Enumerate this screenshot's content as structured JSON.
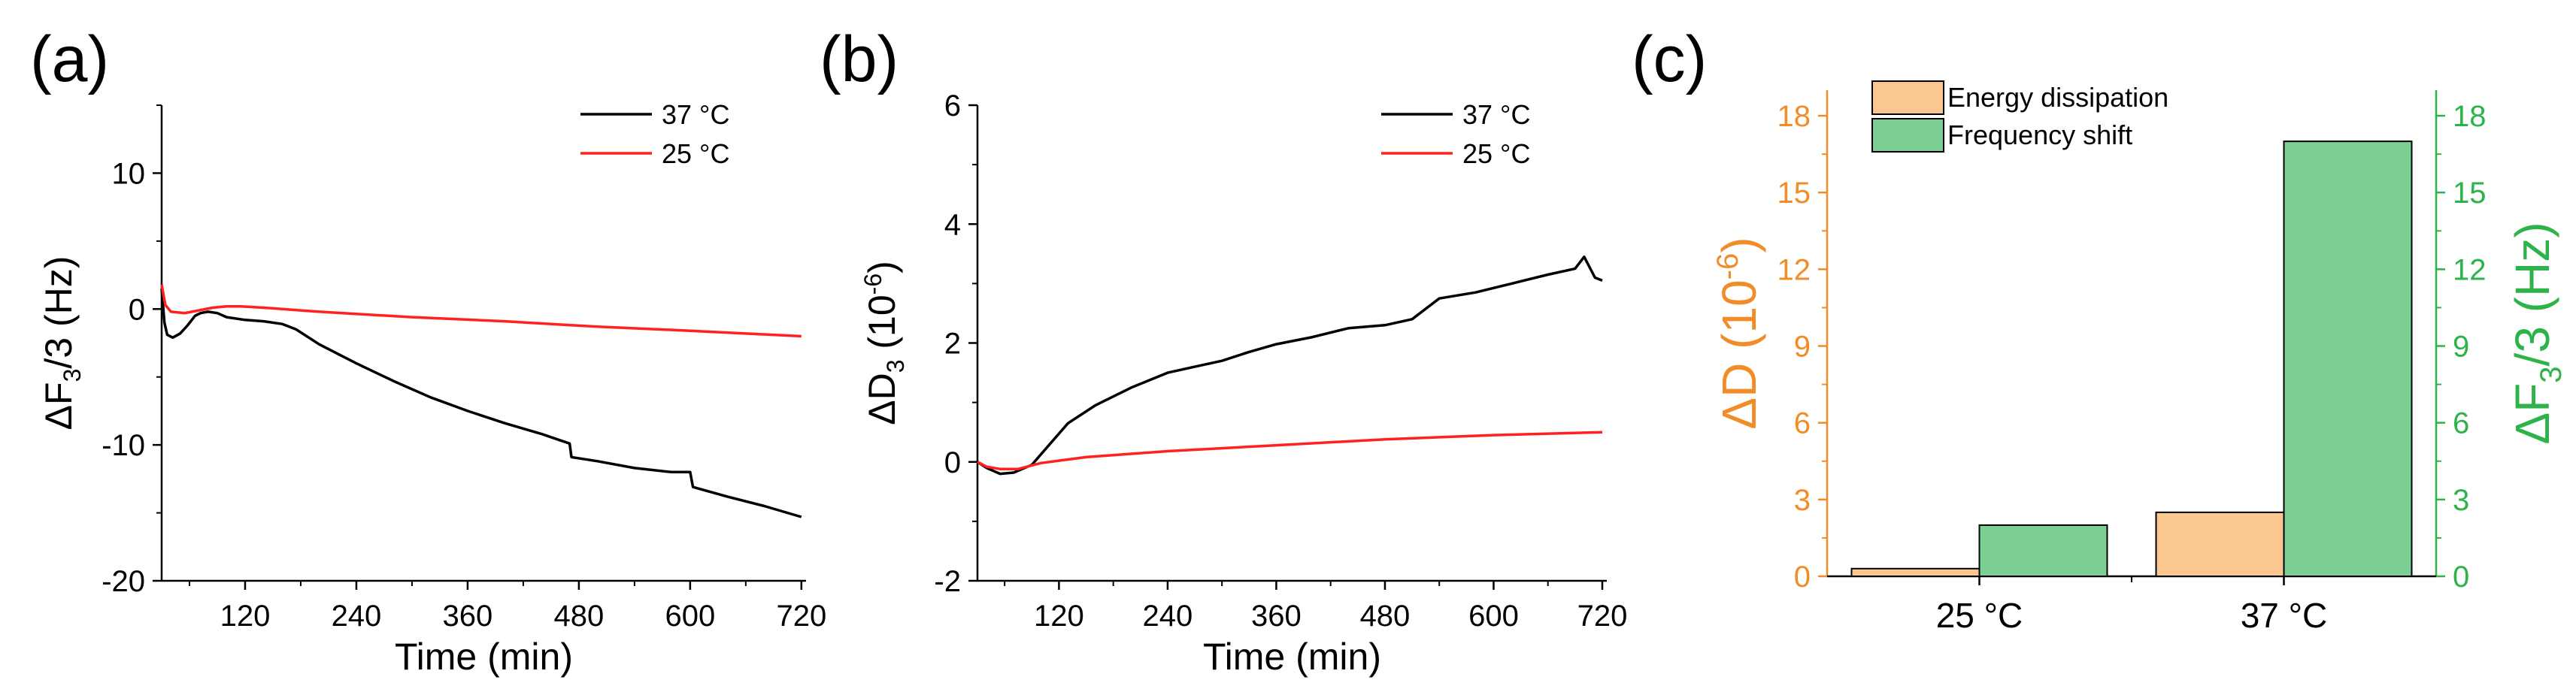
{
  "panels": {
    "a": {
      "label": "(a)"
    },
    "b": {
      "label": "(b)"
    },
    "c": {
      "label": "(c)"
    }
  },
  "chart_data": [
    {
      "type": "line",
      "panel": "(a)",
      "xlabel": "Time (min)",
      "ylabel": "ΔF3/3 (Hz)",
      "ylabel_parts": {
        "main": "ΔF",
        "sub": "3",
        "tail": "/3 (Hz)"
      },
      "xlim": [
        30,
        725
      ],
      "ylim": [
        -20,
        15
      ],
      "xticks": [
        120,
        240,
        360,
        480,
        600,
        720
      ],
      "yticks": [
        -20,
        -10,
        0,
        10
      ],
      "legend_position": "top-right",
      "series": [
        {
          "name": "37 °C",
          "color": "#000000",
          "points": [
            [
              30,
              1.5
            ],
            [
              33,
              -1.0
            ],
            [
              36,
              -1.9
            ],
            [
              42,
              -2.1
            ],
            [
              50,
              -1.8
            ],
            [
              58,
              -1.2
            ],
            [
              66,
              -0.5
            ],
            [
              72,
              -0.3
            ],
            [
              80,
              -0.2
            ],
            [
              90,
              -0.3
            ],
            [
              100,
              -0.6
            ],
            [
              120,
              -0.8
            ],
            [
              140,
              -0.9
            ],
            [
              160,
              -1.1
            ],
            [
              175,
              -1.5
            ],
            [
              200,
              -2.6
            ],
            [
              240,
              -4.0
            ],
            [
              280,
              -5.3
            ],
            [
              320,
              -6.5
            ],
            [
              360,
              -7.5
            ],
            [
              400,
              -8.4
            ],
            [
              440,
              -9.2
            ],
            [
              470,
              -9.9
            ],
            [
              472,
              -10.9
            ],
            [
              500,
              -11.2
            ],
            [
              540,
              -11.7
            ],
            [
              580,
              -12.0
            ],
            [
              600,
              -12.0
            ],
            [
              603,
              -13.1
            ],
            [
              640,
              -13.8
            ],
            [
              680,
              -14.5
            ],
            [
              720,
              -15.3
            ]
          ]
        },
        {
          "name": "25 °C",
          "color": "#ff2020",
          "points": [
            [
              30,
              1.8
            ],
            [
              34,
              0.3
            ],
            [
              40,
              -0.2
            ],
            [
              55,
              -0.3
            ],
            [
              70,
              -0.1
            ],
            [
              85,
              0.1
            ],
            [
              100,
              0.2
            ],
            [
              115,
              0.2
            ],
            [
              140,
              0.1
            ],
            [
              200,
              -0.2
            ],
            [
              300,
              -0.6
            ],
            [
              400,
              -0.9
            ],
            [
              500,
              -1.3
            ],
            [
              600,
              -1.6
            ],
            [
              720,
              -2.0
            ]
          ]
        }
      ]
    },
    {
      "type": "line",
      "panel": "(b)",
      "xlabel": "Time (min)",
      "ylabel": "ΔD3 (10-6)",
      "ylabel_parts": {
        "main": "ΔD",
        "sub": "3",
        "mid": " (10",
        "sup": "-6",
        "tail": ")"
      },
      "xlim": [
        30,
        725
      ],
      "ylim": [
        -2,
        6
      ],
      "xticks": [
        120,
        240,
        360,
        480,
        600,
        720
      ],
      "yticks": [
        -2,
        0,
        2,
        4,
        6
      ],
      "legend_position": "top-right",
      "series": [
        {
          "name": "37 °C",
          "color": "#000000",
          "points": [
            [
              30,
              0.0
            ],
            [
              40,
              -0.1
            ],
            [
              55,
              -0.2
            ],
            [
              70,
              -0.18
            ],
            [
              90,
              -0.05
            ],
            [
              110,
              0.3
            ],
            [
              130,
              0.65
            ],
            [
              160,
              0.95
            ],
            [
              200,
              1.25
            ],
            [
              240,
              1.5
            ],
            [
              270,
              1.6
            ],
            [
              300,
              1.7
            ],
            [
              330,
              1.85
            ],
            [
              360,
              1.98
            ],
            [
              400,
              2.1
            ],
            [
              440,
              2.25
            ],
            [
              480,
              2.3
            ],
            [
              510,
              2.4
            ],
            [
              540,
              2.75
            ],
            [
              580,
              2.85
            ],
            [
              620,
              3.0
            ],
            [
              660,
              3.15
            ],
            [
              690,
              3.25
            ],
            [
              700,
              3.45
            ],
            [
              712,
              3.1
            ],
            [
              720,
              3.05
            ]
          ]
        },
        {
          "name": "25 °C",
          "color": "#ff2020",
          "points": [
            [
              30,
              0.0
            ],
            [
              40,
              -0.08
            ],
            [
              55,
              -0.12
            ],
            [
              75,
              -0.12
            ],
            [
              100,
              -0.02
            ],
            [
              150,
              0.08
            ],
            [
              240,
              0.18
            ],
            [
              360,
              0.28
            ],
            [
              480,
              0.38
            ],
            [
              600,
              0.45
            ],
            [
              720,
              0.5
            ]
          ]
        }
      ]
    },
    {
      "type": "bar",
      "panel": "(c)",
      "categories": [
        "25 °C",
        "37 °C"
      ],
      "ylabel_left": "ΔD (10-6)",
      "ylabel_left_parts": {
        "main": "ΔD",
        "mid": " (10",
        "sup": "-6",
        "tail": ")"
      },
      "ylabel_right": "ΔF3/3 (Hz)",
      "ylabel_right_parts": {
        "main": "ΔF",
        "sub": "3",
        "tail": "/3 (Hz)"
      },
      "ylim": [
        0,
        19
      ],
      "yticks": [
        0,
        3,
        6,
        9,
        12,
        15,
        18
      ],
      "legend_position": "top-left",
      "left_axis_color": "#f28c28",
      "right_axis_color": "#2db34a",
      "series": [
        {
          "name": "Energy dissipation",
          "color": "#fbc790",
          "values": [
            0.3,
            2.5
          ]
        },
        {
          "name": "Frequency shift",
          "color": "#7bcf94",
          "values": [
            2.0,
            17.0
          ]
        }
      ]
    }
  ]
}
